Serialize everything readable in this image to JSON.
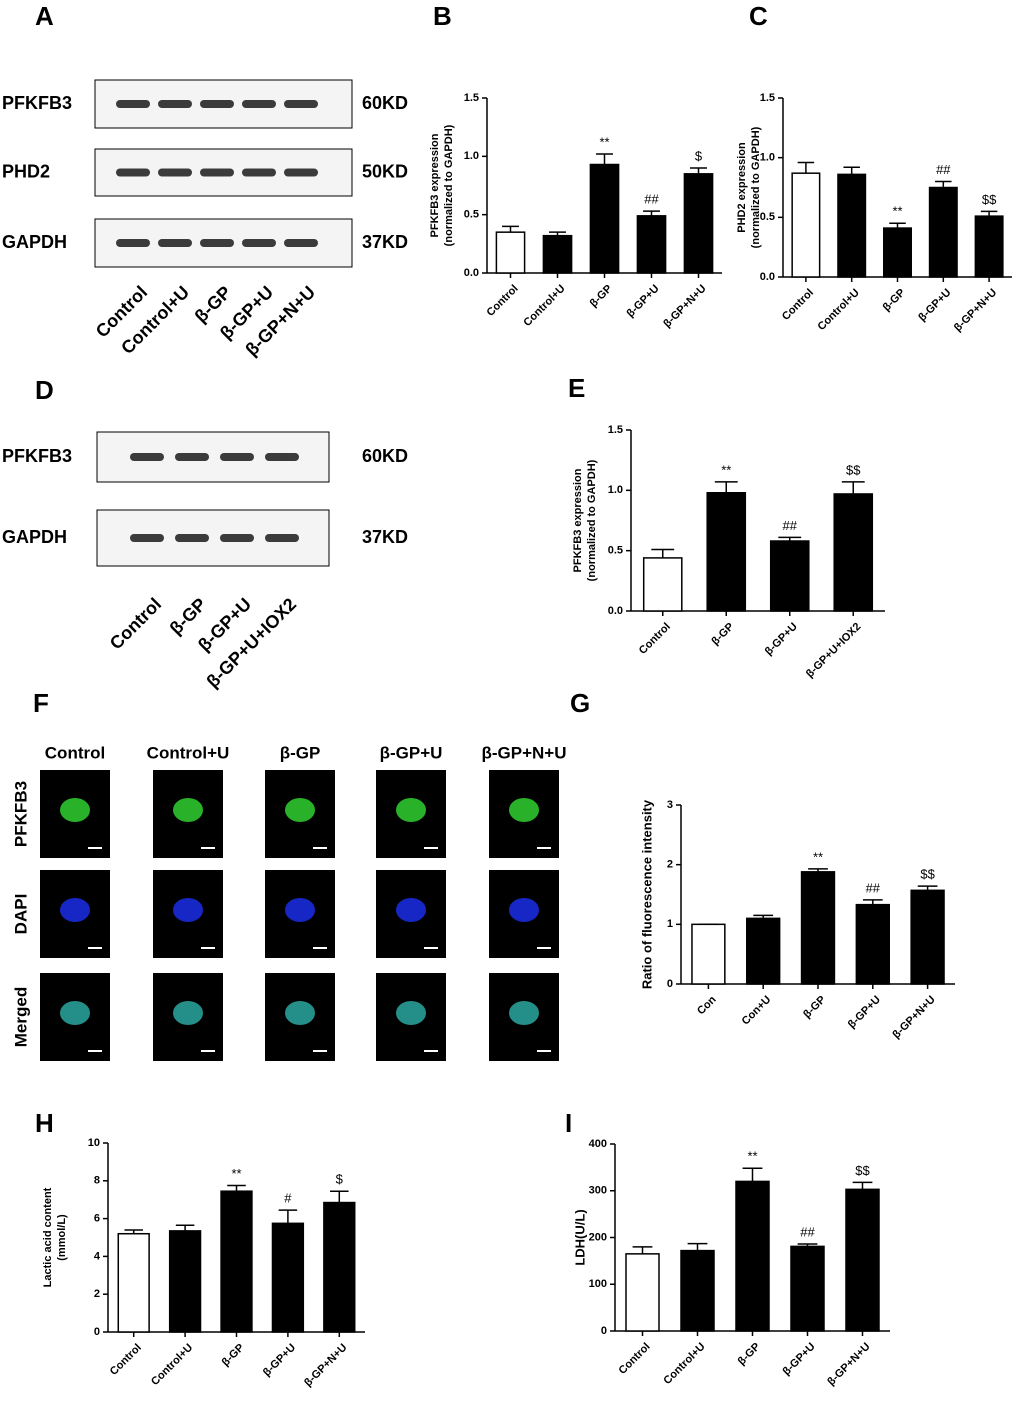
{
  "panel_labels": [
    "A",
    "B",
    "C",
    "D",
    "E",
    "F",
    "G",
    "H",
    "I"
  ],
  "blots": [
    {
      "rows": [
        {
          "protein": "PFKFB3",
          "size": "60KD"
        },
        {
          "protein": "PHD2",
          "size": "50KD"
        },
        {
          "protein": "GAPDH",
          "size": "37KD"
        }
      ],
      "lanes": [
        "Control",
        "Control+U",
        "β-GP",
        "β-GP+U",
        "β-GP+N+U"
      ]
    },
    {
      "rows": [
        {
          "protein": "PFKFB3",
          "size": "60KD"
        },
        {
          "protein": "GAPDH",
          "size": "37KD"
        }
      ],
      "lanes": [
        "Control",
        "β-GP",
        "β-GP+U",
        "β-GP+U+IOX2"
      ]
    }
  ],
  "microscopy": {
    "columns": [
      "Control",
      "Control+U",
      "β-GP",
      "β-GP+U",
      "β-GP+N+U"
    ],
    "rows": [
      "PFKFB3",
      "DAPI",
      "Merged"
    ]
  },
  "chart_data": [
    {
      "type": "bar",
      "ylabel": [
        "PFKFB3 expression",
        "(normalized to GAPDH)"
      ],
      "categories": [
        "Control",
        "Control+U",
        "β-GP",
        "β-GP+U",
        "β-GP+N+U"
      ],
      "values": [
        0.35,
        0.32,
        0.93,
        0.49,
        0.85
      ],
      "errors": [
        0.05,
        0.03,
        0.09,
        0.04,
        0.05
      ],
      "annotations": [
        null,
        null,
        "**",
        "##",
        "$"
      ],
      "colors": [
        "#ffffff",
        "#000000",
        "#000000",
        "#000000",
        "#000000"
      ],
      "ylim": [
        0,
        1.5
      ],
      "yticks": [
        {
          "value": 0,
          "label": "0.0"
        },
        0.5,
        {
          "value": 1,
          "label": "1.0"
        },
        1.5
      ]
    },
    {
      "type": "bar",
      "ylabel": [
        "PHD2 expression",
        "(normalized to GAPDH)"
      ],
      "categories": [
        "Control",
        "Control+U",
        "β-GP",
        "β-GP+U",
        "β-GP+N+U"
      ],
      "values": [
        0.87,
        0.86,
        0.41,
        0.75,
        0.51
      ],
      "errors": [
        0.09,
        0.06,
        0.04,
        0.05,
        0.04
      ],
      "annotations": [
        null,
        null,
        "**",
        "##",
        "$$"
      ],
      "colors": [
        "#ffffff",
        "#000000",
        "#000000",
        "#000000",
        "#000000"
      ],
      "ylim": [
        0,
        1.5
      ],
      "yticks": [
        {
          "value": 0,
          "label": "0.0"
        },
        0.5,
        {
          "value": 1,
          "label": "1.0"
        },
        1.5
      ]
    },
    {
      "type": "bar",
      "ylabel": [
        "PFKFB3 expression",
        "(normalized to GAPDH)"
      ],
      "categories": [
        "Control",
        "β-GP",
        "β-GP+U",
        "β-GP+U+IOX2"
      ],
      "values": [
        0.44,
        0.98,
        0.58,
        0.97
      ],
      "errors": [
        0.07,
        0.09,
        0.03,
        0.1
      ],
      "annotations": [
        null,
        "**",
        "##",
        "$$"
      ],
      "colors": [
        "#ffffff",
        "#000000",
        "#000000",
        "#000000"
      ],
      "ylim": [
        0,
        1.5
      ],
      "yticks": [
        {
          "value": 0,
          "label": "0.0"
        },
        0.5,
        {
          "value": 1,
          "label": "1.0"
        },
        1.5
      ]
    },
    {
      "type": "bar",
      "ylabel": [
        "Ratio of fluorescence intensity"
      ],
      "categories": [
        "Con",
        "Con+U",
        "β-GP",
        "β-GP+U",
        "β-GP+N+U"
      ],
      "values": [
        1.0,
        1.1,
        1.88,
        1.33,
        1.57
      ],
      "errors": [
        0,
        0.05,
        0.05,
        0.08,
        0.07
      ],
      "annotations": [
        null,
        null,
        "**",
        "##",
        "$$"
      ],
      "colors": [
        "#ffffff",
        "#000000",
        "#000000",
        "#000000",
        "#000000"
      ],
      "ylim": [
        0,
        3
      ],
      "yticks": [
        0,
        1,
        2,
        3
      ]
    },
    {
      "type": "bar",
      "ylabel": [
        "Lactic acid content",
        "(mmol/L)"
      ],
      "categories": [
        "Control",
        "Control+U",
        "β-GP",
        "β-GP+U",
        "β-GP+N+U"
      ],
      "values": [
        5.2,
        5.35,
        7.45,
        5.75,
        6.85
      ],
      "errors": [
        0.2,
        0.3,
        0.3,
        0.7,
        0.6
      ],
      "annotations": [
        null,
        null,
        "**",
        "#",
        "$"
      ],
      "colors": [
        "#ffffff",
        "#000000",
        "#000000",
        "#000000",
        "#000000"
      ],
      "ylim": [
        0,
        10
      ],
      "yticks": [
        0,
        2,
        4,
        6,
        8,
        10
      ]
    },
    {
      "type": "bar",
      "ylabel": [
        "LDH(U/L)"
      ],
      "categories": [
        "Control",
        "Control+U",
        "β-GP",
        "β-GP+U",
        "β-GP+N+U"
      ],
      "values": [
        165,
        172,
        320,
        181,
        303
      ],
      "errors": [
        15,
        15,
        28,
        5,
        15
      ],
      "annotations": [
        null,
        null,
        "**",
        "##",
        "$$"
      ],
      "colors": [
        "#ffffff",
        "#000000",
        "#000000",
        "#000000",
        "#000000"
      ],
      "ylim": [
        0,
        400
      ],
      "yticks": [
        0,
        100,
        200,
        300,
        400
      ]
    }
  ]
}
